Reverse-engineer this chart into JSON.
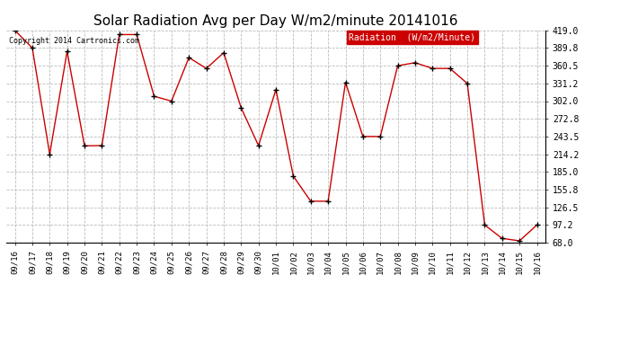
{
  "title": "Solar Radiation Avg per Day W/m2/minute 20141016",
  "copyright_text": "Copyright 2014 Cartronics.com",
  "legend_label": "Radiation  (W/m2/Minute)",
  "legend_bg_color": "#cc0000",
  "legend_text_color": "#ffffff",
  "line_color": "#cc0000",
  "marker_color": "#000000",
  "background_color": "#ffffff",
  "grid_color": "#bbbbbb",
  "title_fontsize": 11,
  "dates": [
    "09/16",
    "09/17",
    "09/18",
    "09/19",
    "09/20",
    "09/21",
    "09/22",
    "09/23",
    "09/24",
    "09/25",
    "09/26",
    "09/27",
    "09/28",
    "09/29",
    "09/30",
    "10/01",
    "10/02",
    "10/03",
    "10/04",
    "10/05",
    "10/06",
    "10/07",
    "10/08",
    "10/09",
    "10/10",
    "10/11",
    "10/12",
    "10/13",
    "10/14",
    "10/15",
    "10/16"
  ],
  "values": [
    419.0,
    389.8,
    214.2,
    384.0,
    228.0,
    228.5,
    412.0,
    412.0,
    310.0,
    302.0,
    374.0,
    356.0,
    382.0,
    291.0,
    228.5,
    321.0,
    178.0,
    136.5,
    136.5,
    333.0,
    243.5,
    243.5,
    360.5,
    365.5,
    356.0,
    356.0,
    331.2,
    97.2,
    75.0,
    71.0,
    97.2
  ],
  "ylim": [
    68.0,
    419.0
  ],
  "yticks": [
    68.0,
    97.2,
    126.5,
    155.8,
    185.0,
    214.2,
    243.5,
    272.8,
    302.0,
    331.2,
    360.5,
    389.8,
    419.0
  ]
}
